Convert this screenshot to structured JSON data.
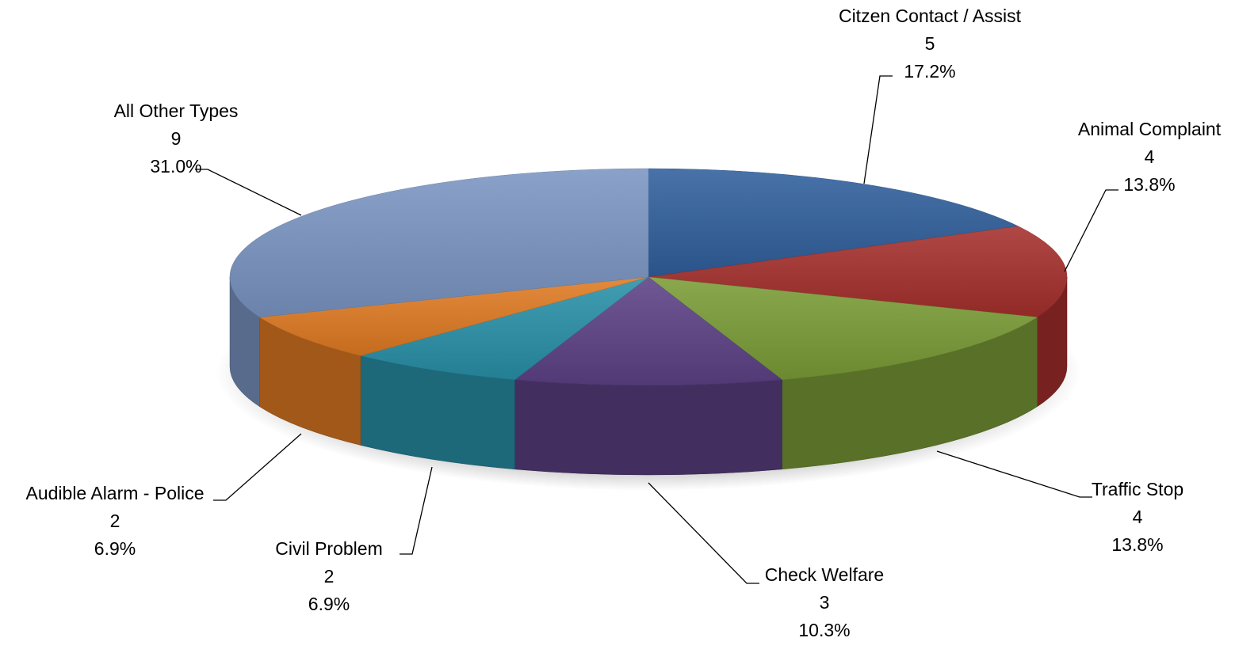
{
  "chart_data": {
    "type": "pie",
    "categories": [
      "Citzen Contact / Assist",
      "Animal Complaint",
      "Traffic Stop",
      "Check Welfare",
      "Civil Problem",
      "Audible Alarm - Police",
      "All Other Types"
    ],
    "values": [
      5,
      4,
      4,
      3,
      2,
      2,
      9
    ],
    "percentages": [
      17.2,
      13.8,
      13.8,
      10.3,
      6.9,
      6.9,
      31.0
    ],
    "percentage_labels": [
      "17.2%",
      "13.8%",
      "13.8%",
      "10.3%",
      "6.9%",
      "6.9%",
      "31.0%"
    ],
    "colors": [
      "#2f5f9c",
      "#a52f2c",
      "#7a9c36",
      "#5c4185",
      "#2890a8",
      "#e07a22",
      "#7a95c2"
    ]
  }
}
